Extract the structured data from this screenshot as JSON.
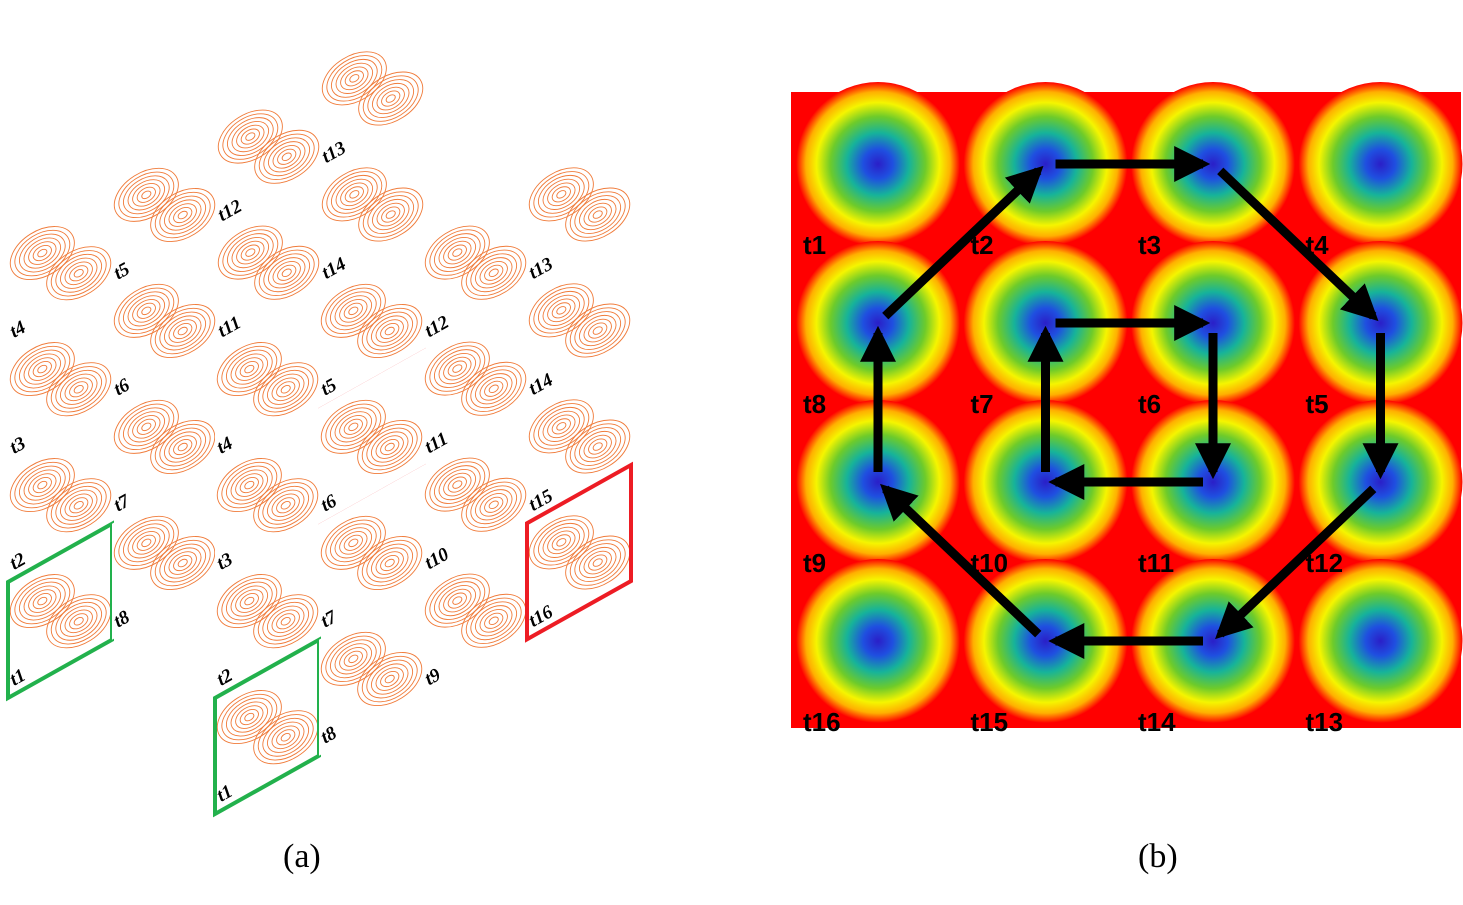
{
  "panel_a": {
    "caption": "(a)",
    "stack_front": {
      "labels": [
        "t1",
        "t2",
        "t3",
        "t4",
        "t5",
        "t6",
        "t7",
        "t8",
        "t9",
        "t10",
        "t11",
        "t12",
        "t13",
        "t14",
        "t15",
        "t16"
      ],
      "grid": [
        [
          "t4",
          "t5",
          "t12",
          "t13"
        ],
        [
          "t3",
          "t6",
          "t11",
          "t14"
        ],
        [
          "t2",
          "t7",
          "t10",
          "t15"
        ],
        [
          "t1",
          "t8",
          "t9",
          "t16"
        ]
      ]
    },
    "stack_back": {
      "grid": [
        [
          "t4",
          "t5",
          "t12",
          "t13"
        ],
        [
          "t3",
          "t6",
          "t11",
          "t14"
        ],
        [
          "t2",
          "t7",
          "t10",
          "t15"
        ],
        [
          "t1",
          "t8",
          "t9",
          "t16"
        ]
      ]
    },
    "highlight_first": "t1",
    "highlight_last": "t16",
    "highlight_first_color": "#22b14c",
    "highlight_last_color": "#ed1c24",
    "contour_color": "#f07b3a"
  },
  "panel_b": {
    "caption": "(b)",
    "grid": [
      [
        "t1",
        "t2",
        "t3",
        "t4"
      ],
      [
        "t8",
        "t7",
        "t6",
        "t5"
      ],
      [
        "t9",
        "t10",
        "t11",
        "t12"
      ],
      [
        "t16",
        "t15",
        "t14",
        "t13"
      ]
    ],
    "outer_path": [
      "t9",
      "t8",
      "t2",
      "t3",
      "t5",
      "t12",
      "t14",
      "t15",
      "t9"
    ],
    "inner_path": [
      "t7",
      "t6",
      "t11",
      "t10",
      "t7"
    ],
    "background_color": "#ff0000",
    "arrow_color": "#000000"
  }
}
